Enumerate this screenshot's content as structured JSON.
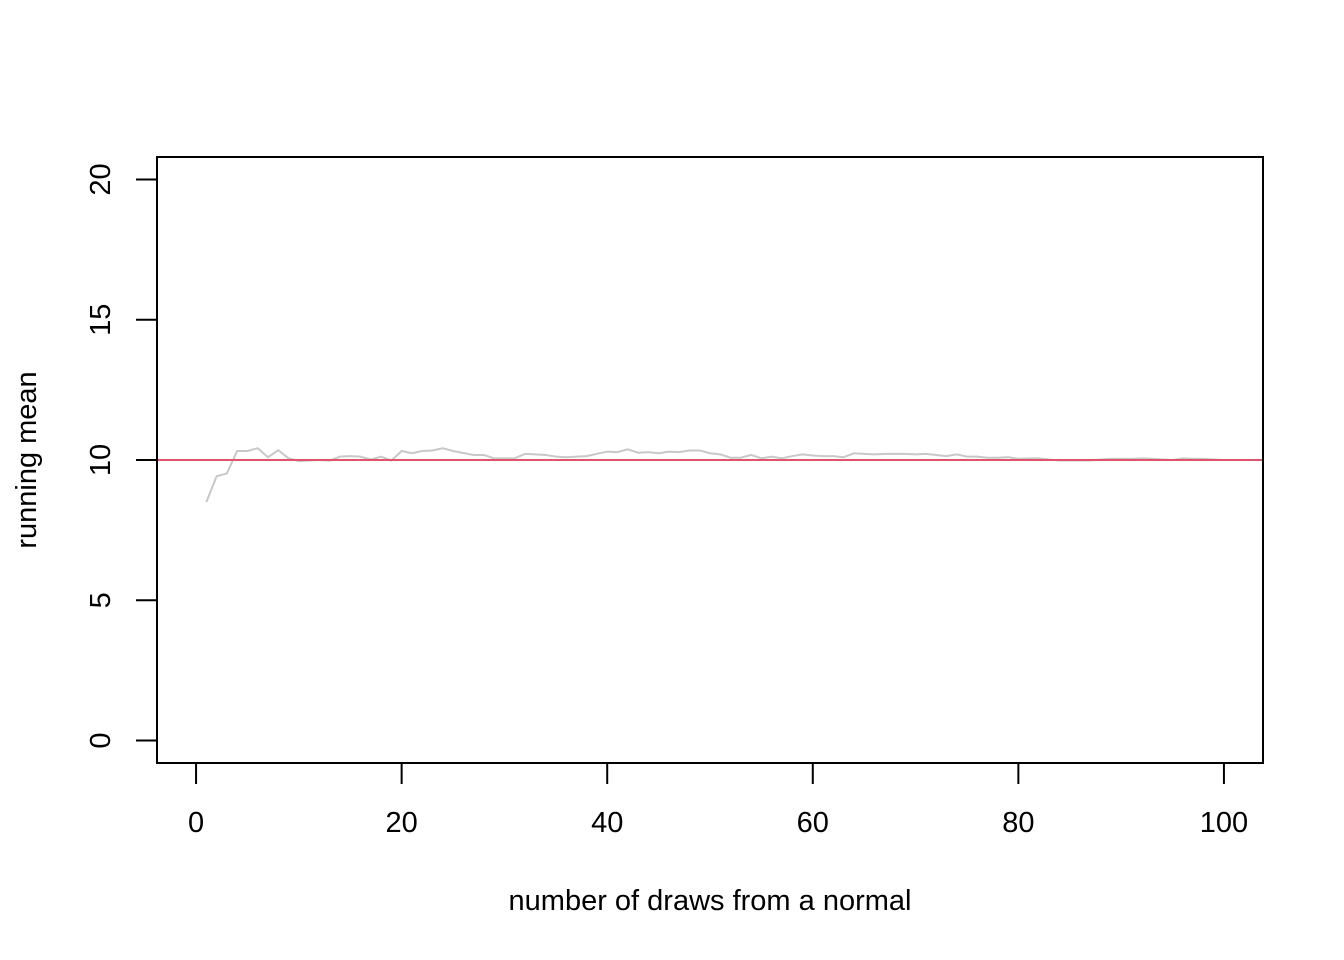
{
  "chart_data": {
    "type": "line",
    "title": "",
    "xlabel": "number of draws from a normal",
    "ylabel": "running mean",
    "xlim": [
      -3.8,
      103.8
    ],
    "ylim": [
      -0.8,
      20.8
    ],
    "xticks": [
      0,
      20,
      40,
      60,
      80,
      100
    ],
    "yticks": [
      0,
      5,
      10,
      15,
      20
    ],
    "grid": false,
    "legend": "none",
    "series": [
      {
        "color": "#c8c8c8",
        "x": [
          1,
          2,
          3,
          4,
          5,
          6,
          7,
          8,
          9,
          10,
          11,
          12,
          13,
          14,
          15,
          16,
          17,
          18,
          19,
          20,
          21,
          22,
          23,
          24,
          25,
          26,
          27,
          28,
          29,
          30,
          31,
          32,
          33,
          34,
          35,
          36,
          37,
          38,
          39,
          40,
          41,
          42,
          43,
          44,
          45,
          46,
          47,
          48,
          49,
          50,
          51,
          52,
          53,
          54,
          55,
          56,
          57,
          58,
          59,
          60,
          61,
          62,
          63,
          64,
          65,
          66,
          67,
          68,
          69,
          70,
          71,
          72,
          73,
          74,
          75,
          76,
          77,
          78,
          79,
          80,
          81,
          82,
          83,
          84,
          85,
          86,
          87,
          88,
          89,
          90,
          91,
          92,
          93,
          94,
          95,
          96,
          97,
          98,
          99,
          100
        ],
        "y": [
          8.5,
          9.42,
          9.52,
          10.32,
          10.32,
          10.42,
          10.1,
          10.35,
          10.06,
          9.96,
          9.98,
          10.0,
          9.98,
          10.12,
          10.14,
          10.12,
          10.02,
          10.12,
          9.98,
          10.32,
          10.24,
          10.32,
          10.34,
          10.42,
          10.32,
          10.25,
          10.18,
          10.18,
          10.06,
          10.06,
          10.06,
          10.22,
          10.2,
          10.18,
          10.12,
          10.1,
          10.12,
          10.14,
          10.22,
          10.3,
          10.28,
          10.38,
          10.26,
          10.28,
          10.24,
          10.3,
          10.28,
          10.34,
          10.34,
          10.24,
          10.2,
          10.08,
          10.08,
          10.18,
          10.06,
          10.12,
          10.06,
          10.14,
          10.2,
          10.16,
          10.14,
          10.14,
          10.1,
          10.24,
          10.22,
          10.2,
          10.22,
          10.22,
          10.22,
          10.2,
          10.22,
          10.18,
          10.14,
          10.2,
          10.12,
          10.12,
          10.08,
          10.08,
          10.1,
          10.04,
          10.06,
          10.06,
          10.02,
          9.98,
          9.98,
          9.98,
          9.98,
          10.02,
          10.04,
          10.04,
          10.04,
          10.06,
          10.04,
          10.02,
          10.0,
          10.06,
          10.04,
          10.04,
          10.02,
          10.0
        ]
      }
    ],
    "reference_line": {
      "y": 10,
      "color": "#df536b"
    }
  }
}
